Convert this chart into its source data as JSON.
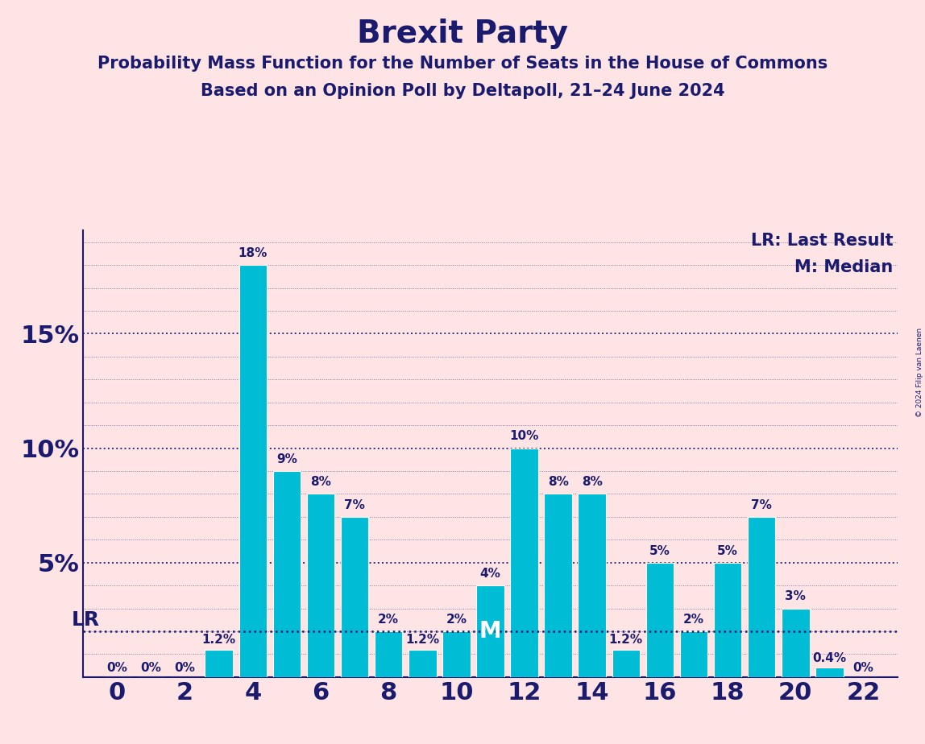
{
  "title": "Brexit Party",
  "subtitle1": "Probability Mass Function for the Number of Seats in the House of Commons",
  "subtitle2": "Based on an Opinion Poll by Deltapoll, 21–24 June 2024",
  "copyright": "© 2024 Filip van Laenen",
  "legend_lr": "LR: Last Result",
  "legend_m": "M: Median",
  "seats": [
    0,
    1,
    2,
    3,
    4,
    5,
    6,
    7,
    8,
    9,
    10,
    11,
    12,
    13,
    14,
    15,
    16,
    17,
    18,
    19,
    20,
    21,
    22
  ],
  "values": [
    0,
    0,
    0,
    1.2,
    18,
    9,
    8,
    7,
    2,
    1.2,
    2,
    4,
    10,
    8,
    8,
    1.2,
    5,
    2,
    5,
    7,
    3,
    0.4,
    0
  ],
  "bar_color": "#00BCD4",
  "bar_edge_color": "white",
  "background_color": "#FFE4E6",
  "text_color": "#1a1a6e",
  "grid_color": "#1a1a6e",
  "lr_value": 2.0,
  "median_seat": 11,
  "title_fontsize": 28,
  "subtitle_fontsize": 15,
  "axis_tick_fontsize": 22,
  "bar_label_fontsize": 11,
  "legend_fontsize": 15,
  "lr_label_fontsize": 18,
  "ylim_top": 19.5,
  "ytick_major": [
    5,
    10,
    15
  ],
  "xticks": [
    0,
    2,
    4,
    6,
    8,
    10,
    12,
    14,
    16,
    18,
    20,
    22
  ],
  "bar_width": 0.82
}
